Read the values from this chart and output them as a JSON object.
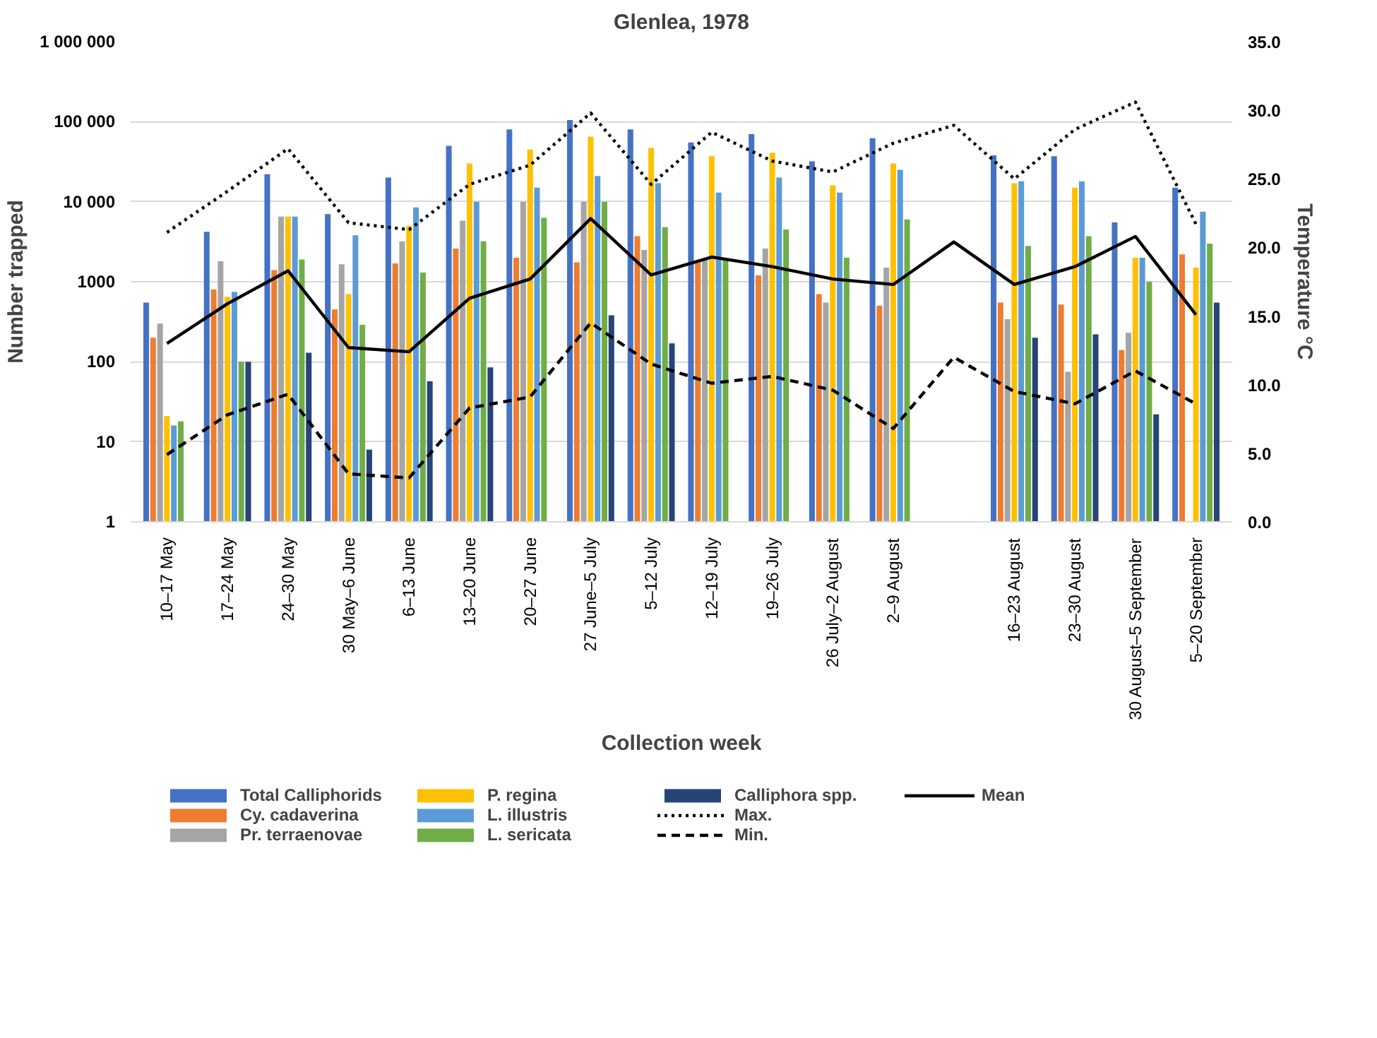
{
  "chart_data": {
    "type": "bar",
    "title": "Glenlea, 1978",
    "xlabel": "Collection week",
    "ylabel": "Number trapped",
    "y2label": "Temperature °C",
    "categories": [
      "10–17 May",
      "17–24 May",
      "24–30 May",
      "30 May–6 June",
      "6–13 June",
      "13–20 June",
      "20–27 June",
      "27 June–5 July",
      "5–12 July",
      "12–19 July",
      "19–26 July",
      "26 July–2 August",
      "2–9 August",
      null,
      "16–23 August",
      "23–30 August",
      "30 August–5 September",
      "5–20 September"
    ],
    "log": "y",
    "ylim": [
      1,
      1000000
    ],
    "yticks": [
      1,
      10,
      100,
      1000,
      {
        "value": 10000,
        "label": "10 000"
      },
      {
        "value": 100000,
        "label": "100 000"
      },
      {
        "value": 1000000,
        "label": "1 000 000"
      }
    ],
    "y2lim": [
      0,
      35
    ],
    "y2ticks": [
      {
        "value": 0,
        "label": "0.0"
      },
      {
        "value": 5,
        "label": "5.0"
      },
      {
        "value": 10,
        "label": "10.0"
      },
      {
        "value": 15,
        "label": "15.0"
      },
      {
        "value": 20,
        "label": "20.0"
      },
      {
        "value": 25,
        "label": "25.0"
      },
      {
        "value": 30,
        "label": "30.0"
      },
      {
        "value": 35,
        "label": "35.0"
      }
    ],
    "grid": "y",
    "legend": "bottom",
    "series": [
      {
        "name": "Total Calliphorids",
        "color": "#4472c4",
        "values": [
          550,
          4200,
          22000,
          7000,
          20000,
          50000,
          80000,
          105000,
          80000,
          55000,
          70000,
          32000,
          62000,
          null,
          38000,
          37000,
          5500,
          15000
        ]
      },
      {
        "name": "Cy. cadaverina",
        "color": "#ed7d31",
        "values": [
          200,
          800,
          1400,
          450,
          1700,
          2600,
          2000,
          1750,
          3700,
          1800,
          1200,
          700,
          500,
          null,
          550,
          520,
          140,
          2200
        ]
      },
      {
        "name": "Pr. terraenovae",
        "color": "#a5a5a5",
        "values": [
          300,
          1800,
          6500,
          1650,
          3200,
          5800,
          10000,
          10000,
          2500,
          1900,
          2600,
          550,
          1500,
          null,
          340,
          75,
          230,
          null
        ]
      },
      {
        "name": "P. regina",
        "color": "#ffc000",
        "values": [
          21,
          650,
          6500,
          700,
          5000,
          30000,
          45000,
          65000,
          47000,
          37000,
          41000,
          16000,
          30000,
          null,
          17000,
          15000,
          2000,
          1500
        ]
      },
      {
        "name": "L. illustris",
        "color": "#5b9bd5",
        "values": [
          16,
          750,
          6500,
          3800,
          8500,
          10000,
          15000,
          21000,
          17000,
          13000,
          20000,
          13000,
          25000,
          null,
          18000,
          18000,
          2000,
          7500
        ]
      },
      {
        "name": "L. sericata",
        "color": "#70ad47",
        "values": [
          18,
          100,
          1900,
          290,
          1300,
          3200,
          6300,
          10000,
          4800,
          1900,
          4500,
          2000,
          6000,
          null,
          2800,
          3700,
          1000,
          3000
        ]
      },
      {
        "name": "Calliphora spp.",
        "color": "#264478",
        "values": [
          null,
          100,
          130,
          8,
          57,
          85,
          null,
          380,
          170,
          null,
          null,
          null,
          null,
          null,
          200,
          220,
          22,
          550
        ]
      },
      {
        "name": "Max.",
        "type": "line",
        "axis": "y2",
        "line_style": "dotted",
        "color": "#000000",
        "values": [
          21.1,
          24.1,
          27.2,
          21.8,
          21.3,
          24.6,
          26.0,
          29.8,
          24.6,
          28.4,
          26.3,
          25.5,
          27.6,
          28.9,
          25.0,
          28.6,
          30.6,
          21.7
        ]
      },
      {
        "name": "Min.",
        "type": "line",
        "axis": "y2",
        "line_style": "dashed",
        "color": "#000000",
        "values": [
          4.9,
          7.8,
          9.3,
          3.5,
          3.2,
          8.3,
          9.1,
          14.5,
          11.5,
          10.1,
          10.6,
          9.6,
          6.8,
          12.0,
          9.5,
          8.6,
          11.0,
          8.6
        ]
      },
      {
        "name": "Mean",
        "type": "line",
        "axis": "y2",
        "line_style": "solid",
        "color": "#000000",
        "values": [
          13.0,
          15.9,
          18.3,
          12.7,
          12.4,
          16.3,
          17.7,
          22.1,
          18.0,
          19.3,
          18.6,
          17.7,
          17.3,
          20.4,
          17.3,
          18.6,
          20.8,
          15.1
        ]
      }
    ]
  }
}
